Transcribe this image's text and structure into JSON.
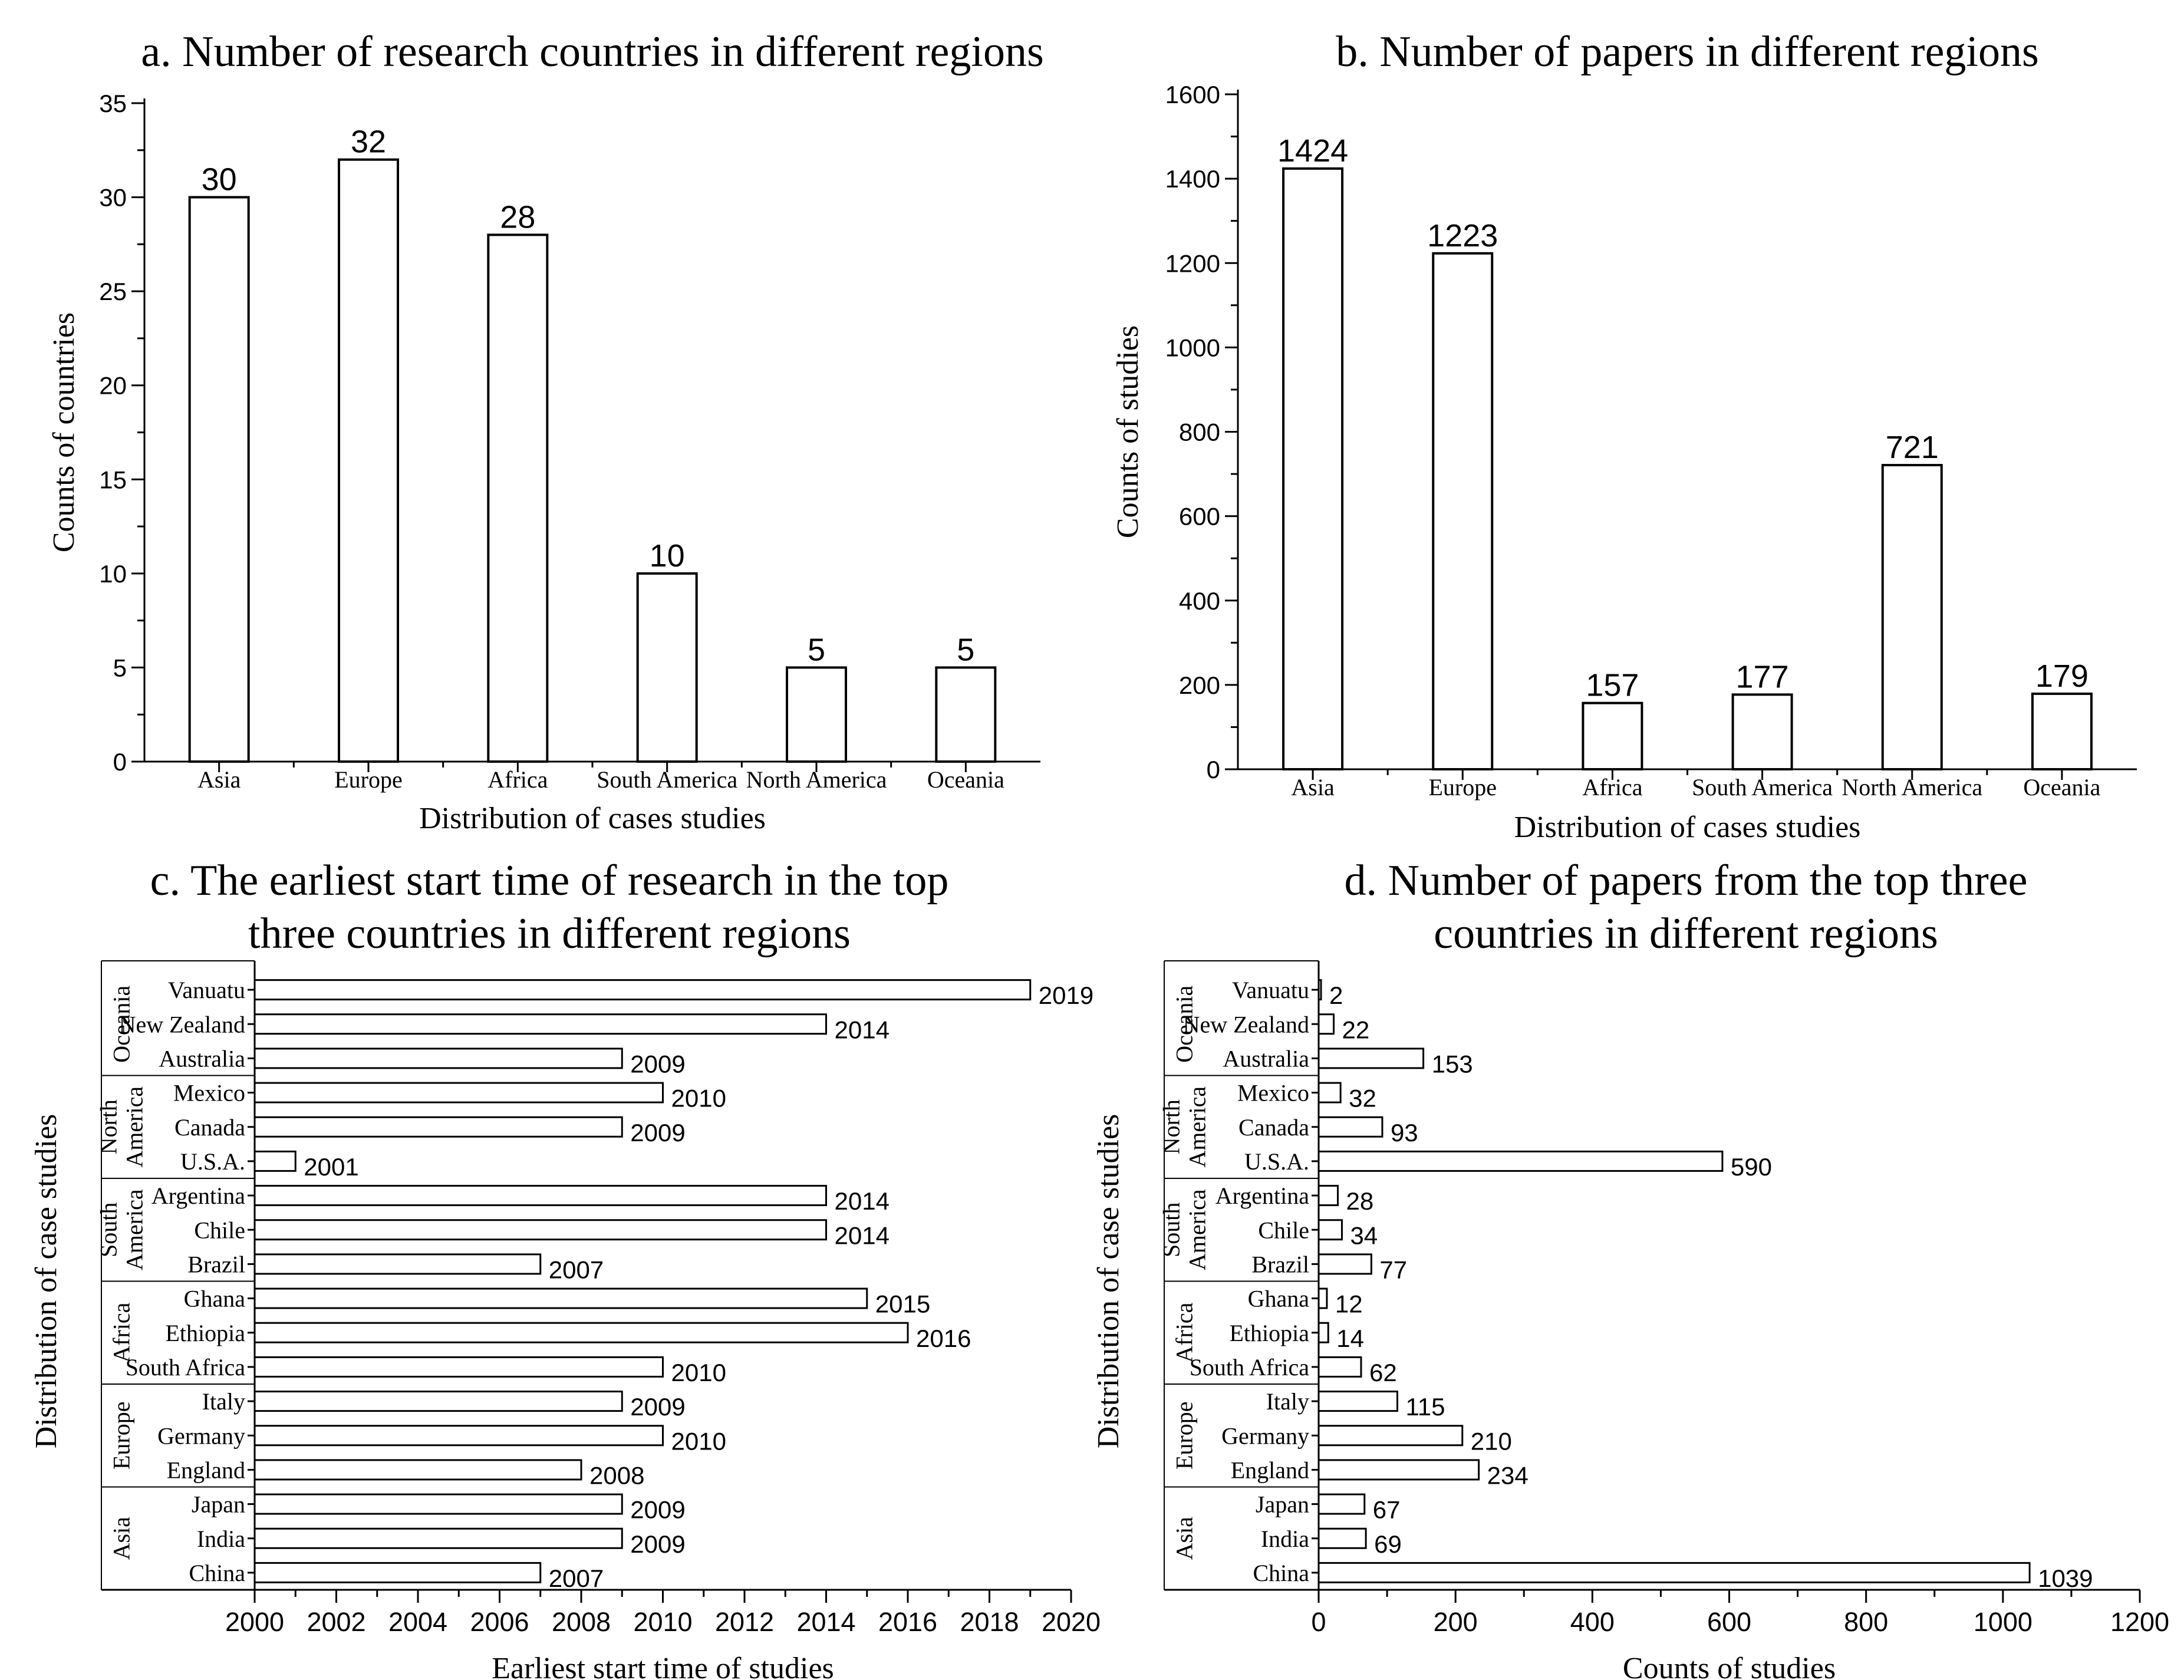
{
  "chart_data": [
    {
      "id": "a",
      "type": "bar",
      "title": "a. Number of research countries in different regions",
      "xlabel": "Distribution of cases studies",
      "ylabel": "Counts of countries",
      "categories": [
        "Asia",
        "Europe",
        "Africa",
        "South America",
        "North America",
        "Oceania"
      ],
      "values": [
        30,
        32,
        28,
        10,
        5,
        5
      ],
      "ylim": [
        0,
        35
      ],
      "yticks": [
        0,
        5,
        10,
        15,
        20,
        25,
        30,
        35
      ]
    },
    {
      "id": "b",
      "type": "bar",
      "title": "b. Number of papers in different regions",
      "xlabel": "Distribution of cases studies",
      "ylabel": "Counts of studies",
      "categories": [
        "Asia",
        "Europe",
        "Africa",
        "South America",
        "North America",
        "Oceania"
      ],
      "values": [
        1424,
        1223,
        157,
        177,
        721,
        179
      ],
      "ylim": [
        0,
        1600
      ],
      "yticks": [
        0,
        200,
        400,
        600,
        800,
        1000,
        1200,
        1400,
        1600
      ]
    },
    {
      "id": "c",
      "type": "bar",
      "orientation": "horizontal",
      "title_lines": [
        "c. The earliest start time of research in the top",
        "three countries in different regions"
      ],
      "xlabel": "Earliest start time of studies",
      "ylabel": "Distribution of case studies",
      "xlim": [
        2000,
        2020
      ],
      "xticks": [
        2000,
        2002,
        2004,
        2006,
        2008,
        2010,
        2012,
        2014,
        2016,
        2018,
        2020
      ],
      "groups": [
        {
          "region": "Oceania",
          "countries": [
            "Vanuatu",
            "New Zealand",
            "Australia"
          ],
          "values": [
            2019,
            2014,
            2009
          ]
        },
        {
          "region": "North America",
          "countries": [
            "Mexico",
            "Canada",
            "U.S.A."
          ],
          "values": [
            2010,
            2009,
            2001
          ]
        },
        {
          "region": "South America",
          "countries": [
            "Argentina",
            "Chile",
            "Brazil"
          ],
          "values": [
            2014,
            2014,
            2007
          ]
        },
        {
          "region": "Africa",
          "countries": [
            "Ghana",
            "Ethiopia",
            "South Africa"
          ],
          "values": [
            2015,
            2016,
            2010
          ]
        },
        {
          "region": "Europe",
          "countries": [
            "Italy",
            "Germany",
            "England"
          ],
          "values": [
            2009,
            2010,
            2008
          ]
        },
        {
          "region": "Asia",
          "countries": [
            "Japan",
            "India",
            "China"
          ],
          "values": [
            2009,
            2009,
            2007
          ]
        }
      ]
    },
    {
      "id": "d",
      "type": "bar",
      "orientation": "horizontal",
      "title_lines": [
        "d. Number of papers from the top three",
        "countries in different regions"
      ],
      "xlabel": "Counts of studies",
      "ylabel": "Distribution of case studies",
      "xlim": [
        0,
        1200
      ],
      "xticks": [
        0,
        200,
        400,
        600,
        800,
        1000,
        1200
      ],
      "groups": [
        {
          "region": "Oceania",
          "countries": [
            "Vanuatu",
            "New Zealand",
            "Australia"
          ],
          "values": [
            2,
            22,
            153
          ]
        },
        {
          "region": "North America",
          "countries": [
            "Mexico",
            "Canada",
            "U.S.A."
          ],
          "values": [
            32,
            93,
            590
          ]
        },
        {
          "region": "South America",
          "countries": [
            "Argentina",
            "Chile",
            "Brazil"
          ],
          "values": [
            28,
            34,
            77
          ]
        },
        {
          "region": "Africa",
          "countries": [
            "Ghana",
            "Ethiopia",
            "South Africa"
          ],
          "values": [
            12,
            14,
            62
          ]
        },
        {
          "region": "Europe",
          "countries": [
            "Italy",
            "Germany",
            "England"
          ],
          "values": [
            115,
            210,
            234
          ]
        },
        {
          "region": "Asia",
          "countries": [
            "Japan",
            "India",
            "China"
          ],
          "values": [
            67,
            69,
            1039
          ]
        }
      ]
    }
  ]
}
